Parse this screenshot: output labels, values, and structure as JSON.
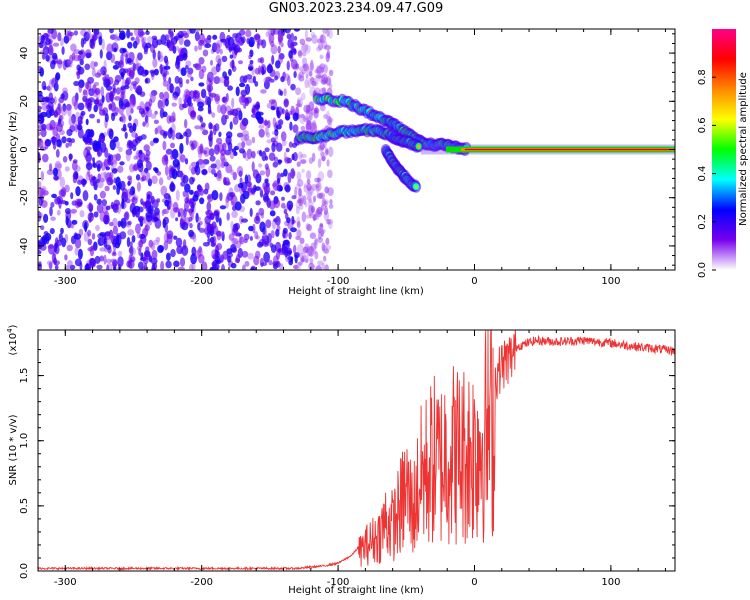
{
  "title": "GN03.2023.234.09.47.G09",
  "chart_data": [
    {
      "type": "heatmap",
      "xlabel": "Height of straight line (km)",
      "ylabel": "Frequency (Hz)",
      "xlim": [
        -320,
        147
      ],
      "ylim": [
        -50,
        50
      ],
      "x_ticks": [
        "-300",
        "-200",
        "-100",
        "0",
        "100"
      ],
      "y_ticks": [
        "-40",
        "-20",
        "0",
        "20",
        "40"
      ],
      "colorbar": {
        "label": "Normalized spectral amplitude",
        "range": [
          0,
          1
        ],
        "ticks": [
          "0.0",
          "0.2",
          "0.4",
          "0.6",
          "0.8"
        ],
        "colors": [
          "#ffffff",
          "#7700ee",
          "#0000ff",
          "#00ffff",
          "#00ff00",
          "#ffff00",
          "#ff8800",
          "#ff0000",
          "#ff0088"
        ]
      },
      "features": {
        "noise_region_x": [
          -320,
          -105
        ],
        "carrier_freq": 0,
        "carrier_x_start": -10,
        "upper_branch": [
          [
            -115,
            21
          ],
          [
            -95,
            20
          ],
          [
            -80,
            16
          ],
          [
            -65,
            12
          ],
          [
            -55,
            9
          ],
          [
            -45,
            5
          ],
          [
            -35,
            2
          ],
          [
            -25,
            2
          ],
          [
            -15,
            1
          ],
          [
            -5,
            0
          ]
        ],
        "lower_branch": [
          [
            -128,
            5
          ],
          [
            -115,
            5
          ],
          [
            -100,
            7
          ],
          [
            -85,
            8
          ],
          [
            -72,
            8
          ],
          [
            -62,
            6
          ],
          [
            -55,
            4
          ],
          [
            -48,
            3
          ],
          [
            -40,
            1
          ]
        ],
        "down_branch": [
          [
            -65,
            0
          ],
          [
            -60,
            -5
          ],
          [
            -55,
            -9
          ],
          [
            -50,
            -12
          ],
          [
            -42,
            -16
          ]
        ]
      }
    },
    {
      "type": "line",
      "xlabel": "Height of straight line (km)",
      "ylabel": "SNR (10 * v/v)",
      "yscale_note": "(x10",
      "yscale_exp": "4",
      "xlim": [
        -320,
        147
      ],
      "ylim": [
        0,
        1.85
      ],
      "x_ticks": [
        "-300",
        "-200",
        "-100",
        "0",
        "100"
      ],
      "y_ticks": [
        "0.0",
        "0.5",
        "1.0",
        "1.5"
      ],
      "color": "#ee3333",
      "envelope": [
        [
          -320,
          0.02
        ],
        [
          -130,
          0.02
        ],
        [
          -110,
          0.04
        ],
        [
          -100,
          0.06
        ],
        [
          -90,
          0.12
        ],
        [
          -80,
          0.25
        ],
        [
          -70,
          0.35
        ],
        [
          -65,
          0.5
        ],
        [
          -60,
          0.45
        ],
        [
          -55,
          0.6
        ],
        [
          -50,
          0.8
        ],
        [
          -45,
          0.6
        ],
        [
          -40,
          0.9
        ],
        [
          -35,
          1.0
        ],
        [
          -30,
          1.1
        ],
        [
          -25,
          1.05
        ],
        [
          -20,
          1.2
        ],
        [
          -10,
          1.15
        ],
        [
          0,
          1.2
        ],
        [
          10,
          1.4
        ],
        [
          20,
          1.62
        ],
        [
          30,
          1.72
        ],
        [
          45,
          1.77
        ],
        [
          60,
          1.76
        ],
        [
          80,
          1.77
        ],
        [
          100,
          1.75
        ],
        [
          120,
          1.72
        ],
        [
          147,
          1.69
        ]
      ]
    }
  ]
}
